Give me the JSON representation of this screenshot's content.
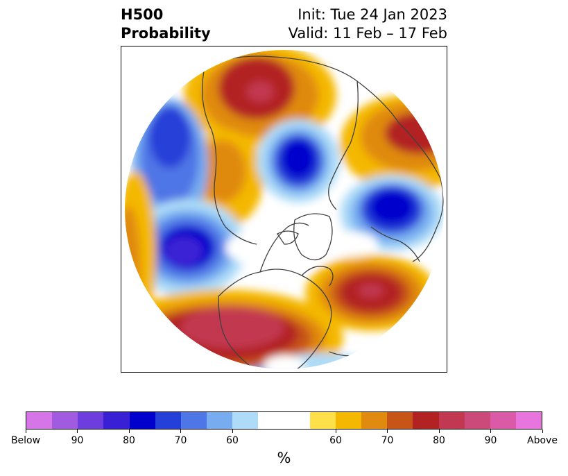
{
  "title": {
    "left_line1": "H500",
    "left_line2": "Probability",
    "right_line1": "Init: Tue 24 Jan 2023",
    "right_line2": "Valid: 11 Feb – 17 Feb"
  },
  "map": {
    "projection": "north-polar-stereographic",
    "coastline_color": "#404040"
  },
  "colorbar": {
    "unit": "%",
    "colors": [
      "#d675e8",
      "#a05be0",
      "#6d3ddd",
      "#3a20d4",
      "#0000cc",
      "#2540d8",
      "#4f76e6",
      "#77adf0",
      "#aedcf8",
      "#ffffff",
      "#ffffff",
      "#ffe04a",
      "#f4b800",
      "#e08a10",
      "#c85518",
      "#b22222",
      "#c23850",
      "#cc4a7a",
      "#da5aa8",
      "#e875dd"
    ],
    "tick_labels": [
      "Below",
      "90",
      "80",
      "70",
      "60",
      "60",
      "70",
      "80",
      "90",
      "Above"
    ]
  }
}
